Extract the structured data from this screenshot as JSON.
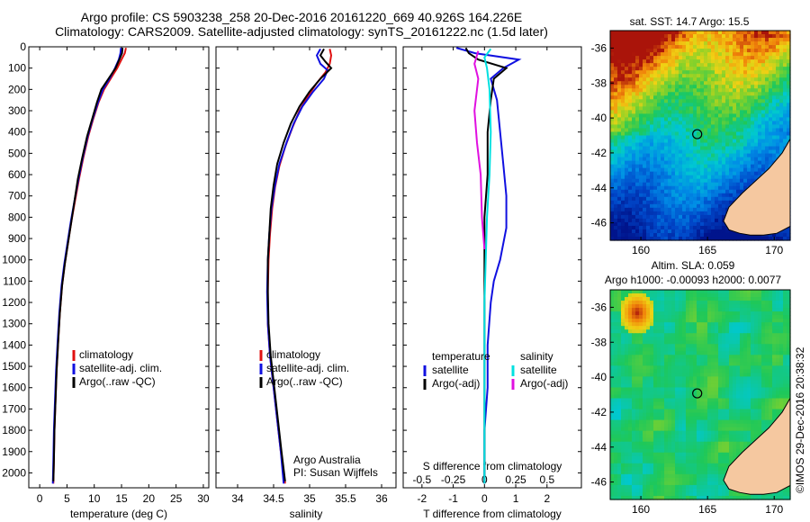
{
  "header": {
    "line1": "Argo profile: CS 5903238_258 20-Dec-2016 20161220_669 40.926S 164.226E",
    "line2": "Climatology: CARS2009. Satellite-adjusted climatology: synTS_20161222.nc (1.5d later)"
  },
  "credit": "©IMOS 29-Dec-2016 20:38:32",
  "colors": {
    "climatology": "#e01010",
    "satellite": "#1010e0",
    "argo": "#000000",
    "cyan": "#00e0e0",
    "magenta": "#e010e0",
    "land": "#f5c8a0"
  },
  "chart_data": [
    {
      "type": "line",
      "id": "temperature",
      "xlabel": "temperature (deg C)",
      "ylabel": "",
      "xlim": [
        -2,
        31
      ],
      "ylim": [
        2070,
        0
      ],
      "xticks": [
        0,
        5,
        10,
        15,
        20,
        25,
        30
      ],
      "yticks": [
        0,
        100,
        200,
        300,
        400,
        500,
        600,
        700,
        800,
        900,
        1000,
        1100,
        1200,
        1300,
        1400,
        1500,
        1600,
        1700,
        1800,
        1900,
        2000
      ],
      "legend": [
        "climatology",
        "satellite-adj. clim.",
        "Argo(..raw -QC)"
      ],
      "series": [
        {
          "name": "climatology",
          "color": "#e01010",
          "points": [
            [
              15.8,
              5
            ],
            [
              15.6,
              30
            ],
            [
              15.0,
              60
            ],
            [
              14.2,
              100
            ],
            [
              13.0,
              150
            ],
            [
              11.8,
              200
            ],
            [
              10.8,
              260
            ],
            [
              9.8,
              340
            ],
            [
              8.9,
              420
            ],
            [
              8.0,
              520
            ],
            [
              7.2,
              620
            ],
            [
              6.5,
              720
            ],
            [
              5.8,
              820
            ],
            [
              5.2,
              920
            ],
            [
              4.6,
              1020
            ],
            [
              4.1,
              1120
            ],
            [
              3.7,
              1250
            ],
            [
              3.4,
              1380
            ],
            [
              3.1,
              1520
            ],
            [
              2.9,
              1660
            ],
            [
              2.7,
              1800
            ],
            [
              2.6,
              1940
            ],
            [
              2.5,
              2050
            ]
          ]
        },
        {
          "name": "satellite-adj. clim.",
          "color": "#1010e0",
          "points": [
            [
              14.9,
              5
            ],
            [
              14.8,
              30
            ],
            [
              14.5,
              60
            ],
            [
              13.8,
              100
            ],
            [
              12.8,
              150
            ],
            [
              11.6,
              200
            ],
            [
              10.7,
              260
            ],
            [
              9.7,
              340
            ],
            [
              8.8,
              420
            ],
            [
              7.9,
              520
            ],
            [
              7.1,
              620
            ],
            [
              6.4,
              720
            ],
            [
              5.7,
              820
            ],
            [
              5.1,
              920
            ],
            [
              4.5,
              1020
            ],
            [
              4.0,
              1120
            ],
            [
              3.6,
              1250
            ],
            [
              3.3,
              1380
            ],
            [
              3.0,
              1520
            ],
            [
              2.8,
              1660
            ],
            [
              2.6,
              1800
            ],
            [
              2.5,
              1940
            ],
            [
              2.4,
              2050
            ]
          ]
        },
        {
          "name": "Argo(..raw -QC)",
          "color": "#000000",
          "points": [
            [
              15.2,
              5
            ],
            [
              15.1,
              30
            ],
            [
              14.6,
              60
            ],
            [
              13.9,
              100
            ],
            [
              12.6,
              150
            ],
            [
              11.3,
              200
            ],
            [
              10.5,
              260
            ],
            [
              9.6,
              340
            ],
            [
              8.7,
              420
            ],
            [
              7.8,
              520
            ],
            [
              7.0,
              620
            ],
            [
              6.4,
              720
            ],
            [
              5.8,
              820
            ],
            [
              5.2,
              920
            ],
            [
              4.6,
              1020
            ],
            [
              4.1,
              1120
            ],
            [
              3.7,
              1250
            ],
            [
              3.4,
              1380
            ],
            [
              3.1,
              1520
            ],
            [
              2.9,
              1660
            ],
            [
              2.7,
              1800
            ],
            [
              2.6,
              1940
            ],
            [
              2.5,
              2040
            ]
          ]
        }
      ]
    },
    {
      "type": "line",
      "id": "salinity",
      "xlabel": "salinity",
      "ylabel": "",
      "xlim": [
        33.7,
        36.2
      ],
      "ylim": [
        2070,
        0
      ],
      "xticks": [
        34,
        34.5,
        35,
        35.5,
        36
      ],
      "legend": [
        "climatology",
        "satellite-adj. clim.",
        "Argo(..raw -QC)"
      ],
      "annotation": [
        "Argo Australia",
        "PI: Susan Wijffels"
      ],
      "series": [
        {
          "name": "climatology",
          "color": "#e01010",
          "points": [
            [
              35.28,
              10
            ],
            [
              35.3,
              40
            ],
            [
              35.28,
              80
            ],
            [
              35.22,
              120
            ],
            [
              35.1,
              170
            ],
            [
              34.98,
              230
            ],
            [
              34.86,
              300
            ],
            [
              34.76,
              380
            ],
            [
              34.66,
              470
            ],
            [
              34.58,
              560
            ],
            [
              34.52,
              660
            ],
            [
              34.48,
              760
            ],
            [
              34.45,
              880
            ],
            [
              34.43,
              1000
            ],
            [
              34.42,
              1150
            ],
            [
              34.42,
              1300
            ],
            [
              34.45,
              1450
            ],
            [
              34.5,
              1600
            ],
            [
              34.55,
              1750
            ],
            [
              34.6,
              1900
            ],
            [
              34.66,
              2050
            ]
          ]
        },
        {
          "name": "satellite-adj. clim.",
          "color": "#1010e0",
          "points": [
            [
              35.15,
              10
            ],
            [
              35.1,
              40
            ],
            [
              35.15,
              80
            ],
            [
              35.25,
              110
            ],
            [
              35.2,
              150
            ],
            [
              35.05,
              210
            ],
            [
              34.9,
              280
            ],
            [
              34.78,
              360
            ],
            [
              34.68,
              450
            ],
            [
              34.58,
              550
            ],
            [
              34.52,
              650
            ],
            [
              34.47,
              760
            ],
            [
              34.44,
              880
            ],
            [
              34.42,
              1000
            ],
            [
              34.41,
              1150
            ],
            [
              34.42,
              1300
            ],
            [
              34.45,
              1450
            ],
            [
              34.5,
              1600
            ],
            [
              34.55,
              1750
            ],
            [
              34.6,
              1900
            ],
            [
              34.64,
              2050
            ]
          ]
        },
        {
          "name": "Argo(..raw -QC)",
          "color": "#000000",
          "points": [
            [
              35.2,
              10
            ],
            [
              35.15,
              40
            ],
            [
              35.22,
              70
            ],
            [
              35.3,
              100
            ],
            [
              35.15,
              150
            ],
            [
              35.0,
              210
            ],
            [
              34.86,
              280
            ],
            [
              34.74,
              360
            ],
            [
              34.64,
              450
            ],
            [
              34.55,
              550
            ],
            [
              34.5,
              650
            ],
            [
              34.46,
              760
            ],
            [
              34.44,
              880
            ],
            [
              34.42,
              1000
            ],
            [
              34.42,
              1150
            ],
            [
              34.43,
              1300
            ],
            [
              34.46,
              1450
            ],
            [
              34.51,
              1600
            ],
            [
              34.56,
              1750
            ],
            [
              34.61,
              1900
            ],
            [
              34.66,
              2040
            ]
          ]
        }
      ]
    },
    {
      "type": "line",
      "id": "difference",
      "xlabel": "T difference from climatology",
      "xlabel_top": "S difference from climatology",
      "ylabel": "",
      "xlim": [
        -2.6,
        3.1
      ],
      "ylim": [
        2070,
        0
      ],
      "xticks": [
        -2,
        -1,
        0,
        1,
        2
      ],
      "xticklabels": [
        "-2",
        "-1",
        "0",
        "1",
        "2"
      ],
      "sticks": [
        -0.5,
        -0.25,
        0,
        0.25,
        0.5
      ],
      "sticklabels": [
        "-0.5",
        "-0.25",
        "0",
        "0.25",
        "0.5"
      ],
      "legend_groups": [
        {
          "title": "temperature",
          "items": [
            "satellite",
            "Argo(-adj)"
          ]
        },
        {
          "title": "salinity",
          "items": [
            "satellite",
            "Argo(-adj)"
          ]
        }
      ],
      "series": [
        {
          "name": "temperature satellite",
          "color": "#1010e0",
          "points": [
            [
              -0.9,
              5
            ],
            [
              -0.3,
              30
            ],
            [
              1.1,
              60
            ],
            [
              0.6,
              100
            ],
            [
              0.2,
              150
            ],
            [
              0.4,
              250
            ],
            [
              0.5,
              400
            ],
            [
              0.6,
              550
            ],
            [
              0.7,
              700
            ],
            [
              0.7,
              850
            ],
            [
              0.5,
              1000
            ],
            [
              0.3,
              1100
            ],
            [
              0.2,
              1200
            ],
            [
              0.1,
              1400
            ],
            [
              0.1,
              1600
            ],
            [
              0.0,
              1800
            ],
            [
              0.0,
              2050
            ]
          ]
        },
        {
          "name": "temperature Argo(-adj)",
          "color": "#000000",
          "points": [
            [
              -0.6,
              5
            ],
            [
              -0.5,
              30
            ],
            [
              -0.2,
              60
            ],
            [
              0.7,
              100
            ],
            [
              0.3,
              150
            ],
            [
              0.2,
              250
            ],
            [
              0.1,
              400
            ],
            [
              0.1,
              600
            ],
            [
              0.0,
              800
            ],
            [
              0.0,
              1000
            ],
            [
              0.0,
              1200
            ],
            [
              0.0,
              1500
            ],
            [
              0.0,
              1800
            ],
            [
              0.0,
              2050
            ]
          ]
        },
        {
          "name": "salinity satellite",
          "color": "#00e0e0",
          "points": [
            [
              0.05,
              10
            ],
            [
              0.0,
              50
            ],
            [
              0.02,
              100
            ],
            [
              0.04,
              200
            ],
            [
              0.05,
              400
            ],
            [
              0.04,
              600
            ],
            [
              0.02,
              800
            ],
            [
              0.01,
              1000
            ],
            [
              0.0,
              1200
            ],
            [
              0.0,
              1500
            ],
            [
              0.0,
              1800
            ],
            [
              0.0,
              2050
            ]
          ]
        },
        {
          "name": "salinity Argo(-adj)",
          "color": "#e010e0",
          "points": [
            [
              -0.05,
              20
            ],
            [
              -0.08,
              80
            ],
            [
              -0.05,
              150
            ],
            [
              -0.08,
              300
            ],
            [
              -0.06,
              450
            ],
            [
              -0.03,
              600
            ],
            [
              -0.02,
              800
            ],
            [
              0.0,
              950
            ]
          ]
        }
      ]
    }
  ],
  "maps": [
    {
      "id": "sst-map",
      "title": "sat. SST: 14.7 Argo: 15.5",
      "xticks": [
        160,
        165,
        170
      ],
      "yticks": [
        -36,
        -38,
        -40,
        -42,
        -44,
        -46
      ],
      "xlim": [
        157.7,
        171.2
      ],
      "ylim": [
        -47.0,
        -35.0
      ],
      "marker": [
        164.226,
        -40.926
      ]
    },
    {
      "id": "sla-map",
      "title": "Altim. SLA: 0.059",
      "subtitle": "Argo h1000: -0.00093 h2000: 0.0077",
      "xticks": [
        160,
        165,
        170
      ],
      "yticks": [
        -36,
        -38,
        -40,
        -42,
        -44,
        -46
      ],
      "xlim": [
        157.7,
        171.2
      ],
      "ylim": [
        -47.0,
        -35.0
      ],
      "marker": [
        164.226,
        -40.926
      ]
    }
  ]
}
